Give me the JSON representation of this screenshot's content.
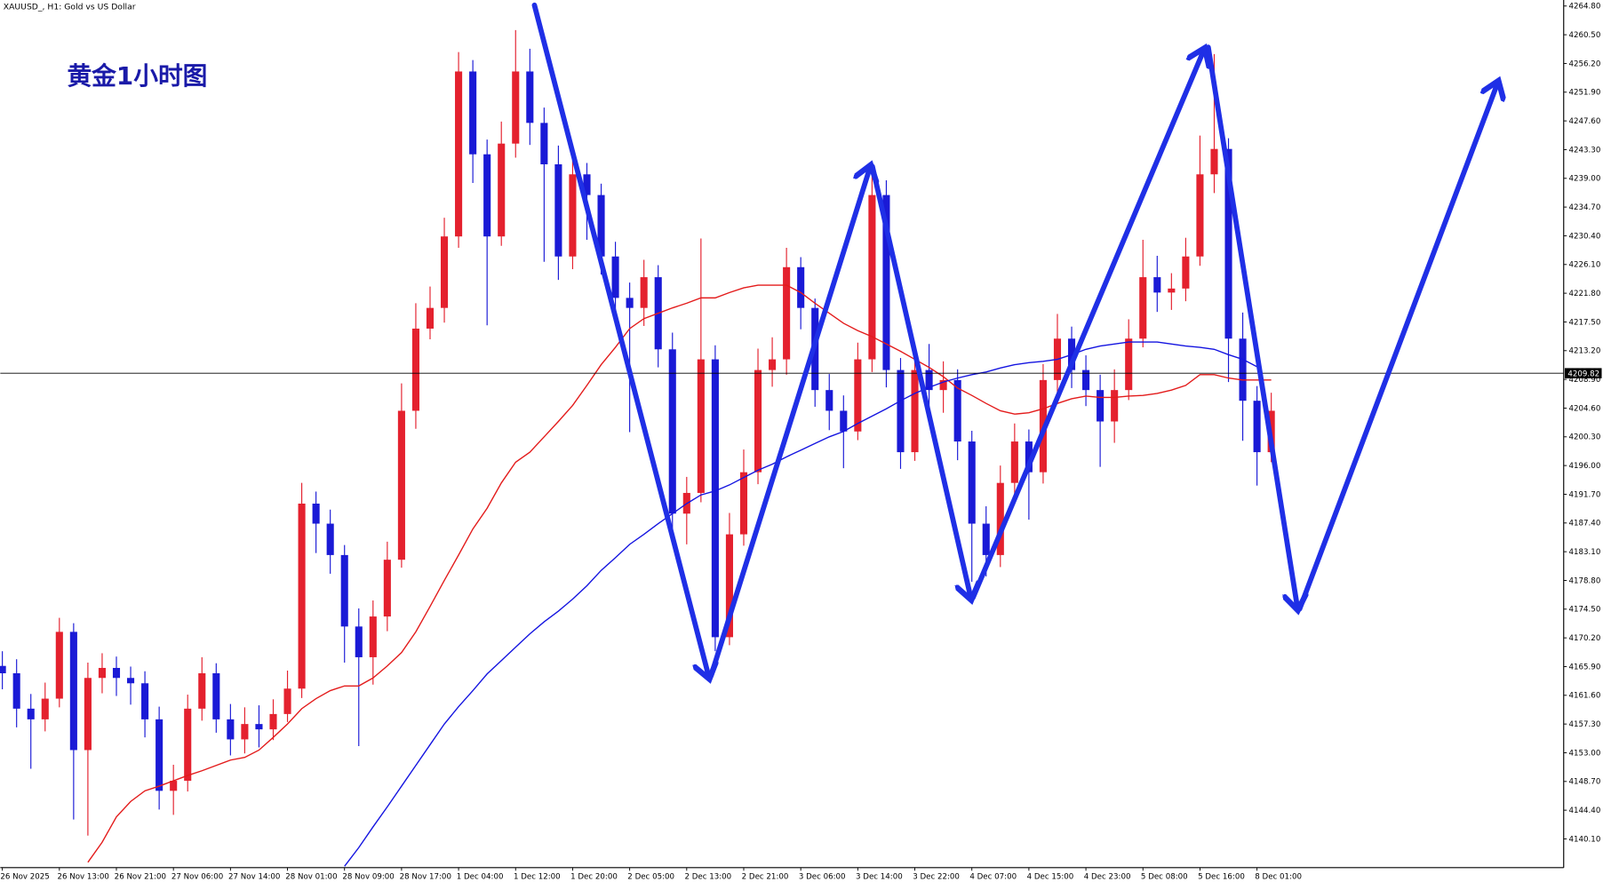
{
  "chart_data": {
    "type": "candlestick",
    "title": "XAUUSD_, H1:  Gold vs US Dollar",
    "annotation": "黄金1小时图",
    "categories": [
      "26 Nov 2025",
      null,
      null,
      null,
      "26 Nov 13:00",
      null,
      null,
      null,
      "26 Nov 21:00",
      null,
      null,
      null,
      "27 Nov 06:00",
      null,
      null,
      null,
      "27 Nov 14:00",
      null,
      null,
      null,
      "28 Nov 01:00",
      null,
      null,
      null,
      "28 Nov 09:00",
      null,
      null,
      null,
      "28 Nov 17:00",
      null,
      null,
      null,
      "1 Dec 04:00",
      null,
      null,
      null,
      "1 Dec 12:00",
      null,
      null,
      null,
      "1 Dec 20:00",
      null,
      null,
      null,
      "2 Dec 05:00",
      null,
      null,
      null,
      "2 Dec 13:00",
      null,
      null,
      null,
      "2 Dec 21:00",
      null,
      null,
      null,
      "3 Dec 06:00",
      null,
      null,
      null,
      "3 Dec 14:00",
      null,
      null,
      null,
      "3 Dec 22:00",
      null,
      null,
      null,
      "4 Dec 07:00",
      null,
      null,
      null,
      "4 Dec 15:00",
      null,
      null,
      null,
      "4 Dec 23:00",
      null,
      null,
      null,
      "5 Dec 08:00",
      null,
      null,
      null,
      "5 Dec 16:00",
      null,
      null,
      null,
      "8 Dec 01:00",
      null
    ],
    "open": [
      4166.0,
      4164.9,
      4159.6,
      4158.0,
      4161.1,
      4171.1,
      4153.4,
      4164.2,
      4165.7,
      4164.2,
      4163.4,
      4158.0,
      4147.3,
      4148.8,
      4159.6,
      4164.9,
      4158.0,
      4155.0,
      4157.3,
      4156.5,
      4158.8,
      4162.6,
      4190.3,
      4187.3,
      4182.6,
      4171.9,
      4167.3,
      4173.4,
      4181.9,
      4204.2,
      4216.5,
      4219.6,
      4230.3,
      4255.0,
      4242.6,
      4230.3,
      4244.2,
      4255.0,
      4247.3,
      4241.1,
      4227.3,
      4239.6,
      4236.5,
      4227.3,
      4221.1,
      4219.6,
      4224.2,
      4213.4,
      4188.8,
      4191.9,
      4211.9,
      4170.3,
      4185.7,
      4195.0,
      4210.3,
      4211.9,
      4225.7,
      4219.6,
      4207.3,
      4204.2,
      4201.1,
      4211.9,
      4236.5,
      4210.3,
      4198.0,
      4210.3,
      4207.3,
      4208.8,
      4199.6,
      4187.3,
      4182.6,
      4193.4,
      4199.6,
      4195.0,
      4208.8,
      4215.0,
      4210.3,
      4207.3,
      4202.6,
      4207.3,
      4215.0,
      4224.2,
      4221.9,
      4222.5,
      4227.3,
      4239.6,
      4243.4,
      4215.0,
      4205.7,
      4198.0
    ],
    "high": [
      4168.2,
      4167.0,
      4161.8,
      4163.5,
      4173.2,
      4172.4,
      4166.5,
      4167.9,
      4167.4,
      4165.9,
      4165.2,
      4159.9,
      4151.2,
      4161.7,
      4167.3,
      4166.4,
      4160.3,
      4159.8,
      4160.1,
      4161.0,
      4165.3,
      4193.4,
      4192.1,
      4189.4,
      4184.1,
      4174.6,
      4175.8,
      4184.6,
      4208.3,
      4220.3,
      4222.8,
      4233.1,
      4257.9,
      4256.7,
      4244.8,
      4247.5,
      4261.2,
      4258.4,
      4249.6,
      4243.9,
      4241.8,
      4241.3,
      4238.2,
      4229.5,
      4223.4,
      4226.8,
      4226.0,
      4215.9,
      4194.3,
      4230.0,
      4214.0,
      4188.9,
      4198.4,
      4213.5,
      4215.2,
      4228.6,
      4227.2,
      4221.0,
      4209.7,
      4206.5,
      4214.4,
      4239.8,
      4238.7,
      4212.1,
      4212.8,
      4214.2,
      4211.6,
      4210.4,
      4201.2,
      4189.9,
      4196.0,
      4202.3,
      4201.4,
      4211.2,
      4218.7,
      4216.8,
      4212.5,
      4209.6,
      4210.4,
      4217.9,
      4229.8,
      4227.4,
      4224.8,
      4230.1,
      4245.4,
      4257.6,
      4245.0,
      4218.9,
      4207.9,
      4206.9
    ],
    "low": [
      4162.5,
      4156.8,
      4150.6,
      4156.2,
      4159.8,
      4143.0,
      4140.6,
      4161.9,
      4161.5,
      4160.2,
      4155.3,
      4144.5,
      4143.7,
      4147.2,
      4157.8,
      4156.0,
      4152.6,
      4152.9,
      4153.8,
      4154.9,
      4157.6,
      4161.2,
      4182.9,
      4179.8,
      4166.5,
      4154.0,
      4163.2,
      4171.2,
      4180.7,
      4201.5,
      4214.9,
      4217.4,
      4228.6,
      4238.3,
      4217.0,
      4228.9,
      4242.1,
      4244.0,
      4226.5,
      4223.8,
      4225.4,
      4229.8,
      4224.6,
      4218.3,
      4201.0,
      4216.9,
      4210.7,
      4185.4,
      4184.2,
      4190.5,
      4168.2,
      4169.1,
      4184.0,
      4193.2,
      4207.8,
      4209.6,
      4216.4,
      4204.8,
      4201.3,
      4195.6,
      4199.8,
      4210.0,
      4207.7,
      4195.5,
      4196.7,
      4204.6,
      4203.9,
      4196.8,
      4178.6,
      4179.4,
      4180.8,
      4190.6,
      4187.9,
      4193.3,
      4206.9,
      4207.6,
      4204.9,
      4195.8,
      4199.4,
      4205.8,
      4213.7,
      4219.0,
      4219.3,
      4220.6,
      4225.9,
      4236.8,
      4208.5,
      4199.7,
      4193.0,
      4196.5
    ],
    "close": [
      4164.9,
      4159.6,
      4158.0,
      4161.1,
      4171.1,
      4153.4,
      4164.2,
      4165.7,
      4164.2,
      4163.4,
      4158.0,
      4147.3,
      4148.8,
      4159.6,
      4164.9,
      4158.0,
      4155.0,
      4157.3,
      4156.5,
      4158.8,
      4162.6,
      4190.3,
      4187.3,
      4182.6,
      4171.9,
      4167.3,
      4173.4,
      4181.9,
      4204.2,
      4216.5,
      4219.6,
      4230.3,
      4255.0,
      4242.6,
      4230.3,
      4244.2,
      4255.0,
      4247.3,
      4241.1,
      4227.3,
      4239.6,
      4236.5,
      4227.3,
      4221.1,
      4219.6,
      4224.2,
      4213.4,
      4188.8,
      4191.9,
      4211.9,
      4170.3,
      4185.7,
      4195.0,
      4210.3,
      4211.9,
      4225.7,
      4219.6,
      4207.3,
      4204.2,
      4201.1,
      4211.9,
      4236.5,
      4210.3,
      4198.0,
      4210.3,
      4207.3,
      4208.8,
      4199.6,
      4187.3,
      4182.6,
      4193.4,
      4199.6,
      4195.0,
      4208.8,
      4215.0,
      4210.3,
      4207.3,
      4202.6,
      4207.3,
      4215.0,
      4224.2,
      4221.9,
      4222.5,
      4227.3,
      4239.6,
      4243.4,
      4215.0,
      4205.7,
      4198.0,
      4204.2
    ],
    "up_color": "#e4212e",
    "down_color": "#1a1ad6",
    "overlays": [
      {
        "color": "#e31b1b",
        "values": [
          null,
          null,
          null,
          null,
          null,
          null,
          4136.6,
          4139.6,
          4143.4,
          4145.7,
          4147.3,
          4148.0,
          4148.8,
          4149.6,
          4150.3,
          4151.1,
          4151.9,
          4152.3,
          4153.4,
          4155.3,
          4157.3,
          4159.6,
          4161.1,
          4162.3,
          4163.0,
          4163.0,
          4164.2,
          4166.0,
          4168.0,
          4171.1,
          4174.9,
          4178.8,
          4182.6,
          4186.5,
          4189.6,
          4193.4,
          4196.5,
          4198.0,
          4200.3,
          4202.6,
          4205.0,
          4208.0,
          4211.1,
          4213.7,
          4216.5,
          4218.0,
          4218.8,
          4219.6,
          4220.3,
          4221.1,
          4221.1,
          4221.9,
          4222.6,
          4223.0,
          4223.0,
          4223.0,
          4221.9,
          4220.3,
          4218.8,
          4217.3,
          4216.2,
          4215.3,
          4214.2,
          4213.1,
          4211.9,
          4210.7,
          4209.3,
          4207.6,
          4206.5,
          4205.3,
          4204.2,
          4203.7,
          4203.9,
          4204.5,
          4205.3,
          4206.0,
          4206.4,
          4206.2,
          4206.2,
          4206.4,
          4206.5,
          4206.8,
          4207.3,
          4208.0,
          4209.6,
          4209.6,
          4209.1,
          4208.8,
          4208.8,
          4208.8
        ]
      },
      {
        "color": "#1414e0",
        "values": [
          null,
          null,
          null,
          null,
          null,
          null,
          null,
          null,
          null,
          null,
          null,
          null,
          null,
          null,
          null,
          null,
          null,
          null,
          null,
          null,
          null,
          null,
          null,
          null,
          4136.0,
          4138.8,
          4141.9,
          4144.9,
          4148.0,
          4151.1,
          4154.2,
          4157.3,
          4159.9,
          4162.3,
          4164.8,
          4166.8,
          4168.8,
          4170.8,
          4172.6,
          4174.2,
          4176.0,
          4178.0,
          4180.3,
          4182.2,
          4184.2,
          4185.7,
          4187.3,
          4188.8,
          4190.3,
          4191.6,
          4192.2,
          4193.1,
          4194.2,
          4195.3,
          4196.2,
          4197.3,
          4198.3,
          4199.3,
          4200.3,
          4201.1,
          4202.3,
          4203.4,
          4204.5,
          4205.7,
          4206.8,
          4207.7,
          4208.5,
          4209.1,
          4209.6,
          4210.0,
          4210.6,
          4211.1,
          4211.4,
          4211.6,
          4211.9,
          4212.6,
          4213.4,
          4213.9,
          4214.2,
          4214.5,
          4214.5,
          4214.5,
          4214.2,
          4213.9,
          4213.7,
          4213.4,
          4212.6,
          4211.9,
          4210.8,
          null
        ]
      }
    ],
    "current_price": {
      "value": 4209.82,
      "label": "4209.82"
    },
    "ylim": [
      4135.8,
      4265.7
    ],
    "yticks": [
      {
        "value": 4264.8,
        "label": "4264.80"
      },
      {
        "value": 4260.5,
        "label": "4260.50"
      },
      {
        "value": 4256.2,
        "label": "4256.20"
      },
      {
        "value": 4251.9,
        "label": "4251.90"
      },
      {
        "value": 4247.6,
        "label": "4247.60"
      },
      {
        "value": 4243.3,
        "label": "4243.30"
      },
      {
        "value": 4239,
        "label": "4239.00"
      },
      {
        "value": 4234.7,
        "label": "4234.70"
      },
      {
        "value": 4230.4,
        "label": "4230.40"
      },
      {
        "value": 4226.1,
        "label": "4226.10"
      },
      {
        "value": 4221.8,
        "label": "4221.80"
      },
      {
        "value": 4217.5,
        "label": "4217.50"
      },
      {
        "value": 4213.2,
        "label": "4213.20"
      },
      {
        "value": 4208.9,
        "label": "4208.90"
      },
      {
        "value": 4204.6,
        "label": "4204.60"
      },
      {
        "value": 4200.3,
        "label": "4200.30"
      },
      {
        "value": 4196,
        "label": "4196.00"
      },
      {
        "value": 4191.7,
        "label": "4191.70"
      },
      {
        "value": 4187.4,
        "label": "4187.40"
      },
      {
        "value": 4183.1,
        "label": "4183.10"
      },
      {
        "value": 4178.8,
        "label": "4178.80"
      },
      {
        "value": 4174.5,
        "label": "4174.50"
      },
      {
        "value": 4170.2,
        "label": "4170.20"
      },
      {
        "value": 4165.9,
        "label": "4165.90"
      },
      {
        "value": 4161.6,
        "label": "4161.60"
      },
      {
        "value": 4157.3,
        "label": "4157.30"
      },
      {
        "value": 4153,
        "label": "4153.00"
      },
      {
        "value": 4148.7,
        "label": "4148.70"
      },
      {
        "value": 4144.4,
        "label": "4144.40"
      },
      {
        "value": 4140.1,
        "label": "4140.10"
      }
    ]
  }
}
